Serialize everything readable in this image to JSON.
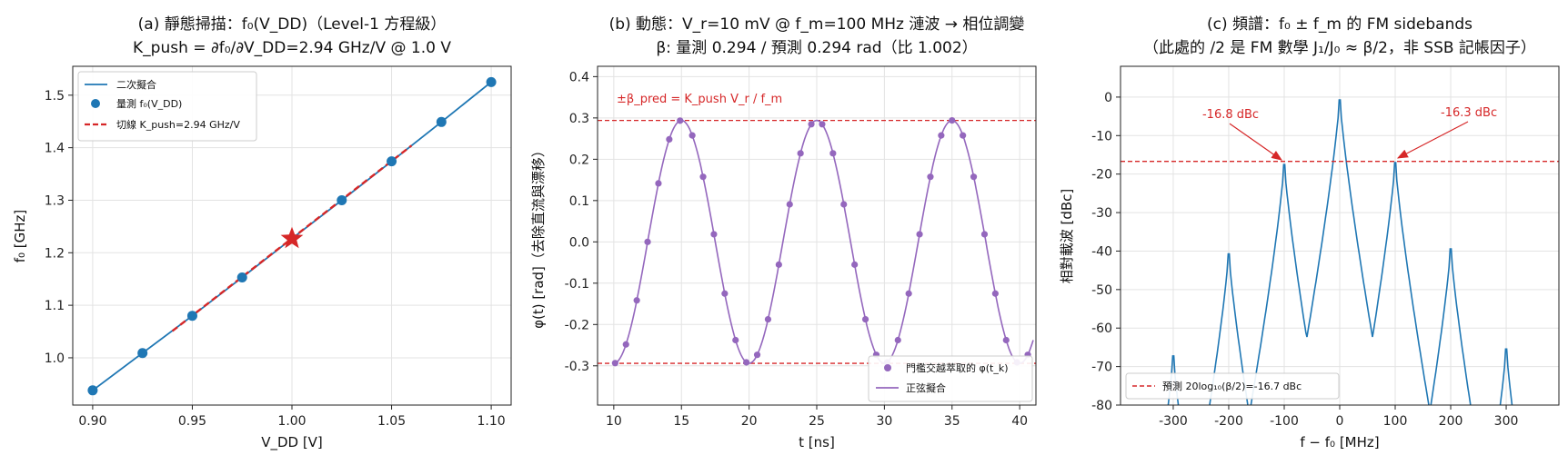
{
  "chart_data": [
    {
      "id": "a",
      "type": "line",
      "title_line1": "(a) 靜態掃描：f₀(V_DD)（Level-1 方程級）",
      "title_line2": "K_push = ∂f₀/∂V_DD=2.94 GHz/V @ 1.0 V",
      "xlabel": "V_DD [V]",
      "ylabel": "f₀ [GHz]",
      "xlim": [
        0.89,
        1.11
      ],
      "ylim": [
        0.91,
        1.555
      ],
      "xticks": [
        "0.90",
        "0.95",
        "1.00",
        "1.05",
        "1.10"
      ],
      "yticks": [
        "1.0",
        "1.1",
        "1.2",
        "1.3",
        "1.4",
        "1.5"
      ],
      "grid": true,
      "legend_position": "upper-left",
      "series": [
        {
          "name": "二次擬合",
          "kind": "line",
          "color": "#1f77b4",
          "x": [
            0.9,
            0.925,
            0.95,
            0.975,
            1.0,
            1.025,
            1.05,
            1.075,
            1.1
          ],
          "y": [
            0.938,
            1.009,
            1.08,
            1.153,
            1.227,
            1.3,
            1.374,
            1.449,
            1.525
          ]
        },
        {
          "name": "量測 f₀(V_DD)",
          "kind": "scatter",
          "color": "#1f77b4",
          "x": [
            0.9,
            0.925,
            0.95,
            0.975,
            1.025,
            1.05,
            1.075,
            1.1
          ],
          "y": [
            0.938,
            1.009,
            1.08,
            1.153,
            1.3,
            1.374,
            1.449,
            1.525
          ]
        },
        {
          "name": "切線 K_push=2.94 GHz/V",
          "kind": "dashed",
          "color": "#d62728",
          "x": [
            0.94,
            1.06
          ],
          "y": [
            1.051,
            1.404
          ]
        }
      ],
      "marker": {
        "label": "operating point",
        "x": 1.0,
        "y": 1.227,
        "color": "#d62728",
        "shape": "star"
      }
    },
    {
      "id": "b",
      "type": "line",
      "title_line1": "(b) 動態：V_r=10 mV @ f_m=100 MHz 漣波 → 相位調變",
      "title_line2": "β: 量測 0.294 / 預測 0.294 rad（比 1.002）",
      "xlabel": "t [ns]",
      "ylabel": "φ(t) [rad]（去除直流與漂移）",
      "xlim": [
        8.8,
        41.2
      ],
      "ylim": [
        -0.395,
        0.425
      ],
      "xticks": [
        "10",
        "15",
        "20",
        "25",
        "30",
        "35",
        "40"
      ],
      "yticks": [
        "-0.3",
        "-0.2",
        "-0.1",
        "0.0",
        "0.1",
        "0.2",
        "0.3",
        "0.4"
      ],
      "grid": true,
      "legend_position": "lower-right",
      "sine": {
        "amplitude": 0.294,
        "period_ns": 10,
        "peak_at_ns": 15,
        "t_start": 10,
        "t_end": 41
      },
      "series": [
        {
          "name": "門檻交越萃取的 φ(t_k)",
          "kind": "scatter",
          "color": "#9467bd",
          "x": [
            10.1,
            10.9,
            11.7,
            12.5,
            13.3,
            14.1,
            14.9,
            15.8,
            16.6,
            17.4,
            18.2,
            19.0,
            19.8,
            20.6,
            21.4,
            22.2,
            23.0,
            23.8,
            24.6,
            25.4,
            26.2,
            27.0,
            27.8,
            28.6,
            29.4,
            30.2,
            31.0,
            31.8,
            32.6,
            33.4,
            34.2,
            35.0,
            35.8,
            36.6,
            37.4,
            38.2,
            39.0,
            39.8,
            40.6
          ]
        },
        {
          "name": "正弦擬合",
          "kind": "line",
          "color": "#9467bd"
        }
      ],
      "hlines": [
        {
          "y": 0.294,
          "color": "#d62728",
          "dash": true
        },
        {
          "y": -0.294,
          "color": "#d62728",
          "dash": true
        }
      ],
      "annotation": "±β_pred = K_push V_r / f_m"
    },
    {
      "id": "c",
      "type": "line",
      "title_line1": "(c) 頻譜：f₀ ± f_m 的 FM sidebands",
      "title_line2": "（此處的 /2 是 FM 數學 J₁/J₀ ≈ β/2，非 SSB 記帳因子）",
      "xlabel": "f − f₀ [MHz]",
      "ylabel": "相對載波 [dBc]",
      "xlim": [
        -395,
        395
      ],
      "ylim": [
        -80,
        8
      ],
      "xticks": [
        "-300",
        "-200",
        "-100",
        "0",
        "100",
        "200",
        "300"
      ],
      "yticks": [
        "0",
        "-10",
        "-20",
        "-30",
        "-40",
        "-50",
        "-60",
        "-70",
        "-80"
      ],
      "grid": true,
      "legend_position": "lower-left",
      "series": [
        {
          "name": "spectrum",
          "kind": "line",
          "color": "#1f77b4",
          "peaks": [
            {
              "f": -300,
              "level": -66.5
            },
            {
              "f": -200,
              "level": -40
            },
            {
              "f": -100,
              "level": -16.8
            },
            {
              "f": 0,
              "level": 0
            },
            {
              "f": 100,
              "level": -16.3
            },
            {
              "f": 200,
              "level": -38.7
            },
            {
              "f": 300,
              "level": -64.7
            }
          ]
        },
        {
          "name": "預測 20log₁₀(β/2)=-16.7 dBc",
          "kind": "dashed",
          "color": "#d62728",
          "y": -16.7
        }
      ],
      "annotations": [
        {
          "text": "-16.8 dBc",
          "x": -100,
          "y": -16.8
        },
        {
          "text": "-16.3 dBc",
          "x": 100,
          "y": -16.3
        }
      ]
    }
  ]
}
